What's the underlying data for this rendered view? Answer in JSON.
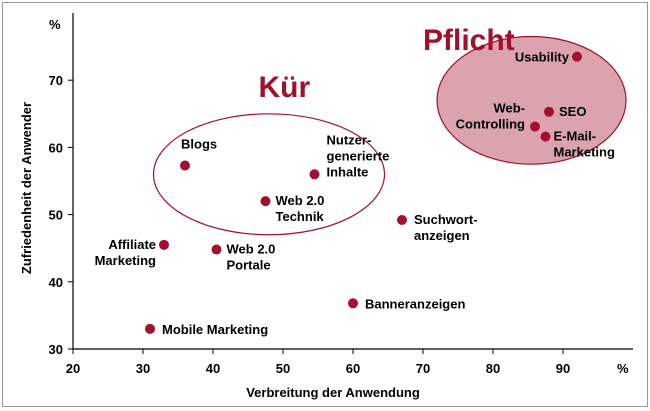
{
  "chart_data": {
    "type": "scatter",
    "xlabel": "Verbreitung der Anwendung",
    "ylabel": "Zufriedenheit der Anwender",
    "x_unit": "%",
    "y_unit": "%",
    "xlim": [
      20,
      100
    ],
    "ylim": [
      30,
      80
    ],
    "x_ticks": [
      20,
      30,
      40,
      50,
      60,
      70,
      80,
      90
    ],
    "y_ticks": [
      30,
      40,
      50,
      60,
      70
    ],
    "grid": false,
    "point_color": "#a30f2d",
    "points": [
      {
        "label": "Usability",
        "x": 92,
        "y": 73.5
      },
      {
        "label": "SEO",
        "x": 88,
        "y": 65.3
      },
      {
        "label": "Web-\nControlling",
        "x": 86,
        "y": 63.1
      },
      {
        "label": "E-Mail-\nMarketing",
        "x": 87.5,
        "y": 61.6
      },
      {
        "label": "Nutzer-\ngenerierte\nInhalte",
        "x": 54.5,
        "y": 56
      },
      {
        "label": "Blogs",
        "x": 36,
        "y": 57.3
      },
      {
        "label": "Web 2.0\nTechnik",
        "x": 47.5,
        "y": 52
      },
      {
        "label": "Suchwort-\nanzeigen",
        "x": 67,
        "y": 49.2
      },
      {
        "label": "Affiliate\nMarketing",
        "x": 33,
        "y": 45.5
      },
      {
        "label": "Web 2.0\nPortale",
        "x": 40.5,
        "y": 44.8
      },
      {
        "label": "Banneranzeigen",
        "x": 60,
        "y": 36.8
      },
      {
        "label": "Mobile Marketing",
        "x": 31,
        "y": 33
      }
    ],
    "groups": [
      {
        "label": "Kür",
        "center_x": 48,
        "center_y": 56,
        "radius_x": 16.5,
        "radius_y": 9,
        "fill": "none",
        "stroke": "#a30f2d",
        "label_color": "#a30f2d"
      },
      {
        "label": "Pflicht",
        "center_x": 85.5,
        "center_y": 67,
        "radius_x": 13.5,
        "radius_y": 9.5,
        "fill": "#dba3ae",
        "stroke": "#a30f2d",
        "label_color": "#a30f2d"
      }
    ],
    "group_labels_at": [
      {
        "label": "Kür",
        "x": 46.5,
        "y": 67.5
      },
      {
        "label": "Pflicht",
        "x": 70,
        "y": 74.5
      }
    ]
  }
}
